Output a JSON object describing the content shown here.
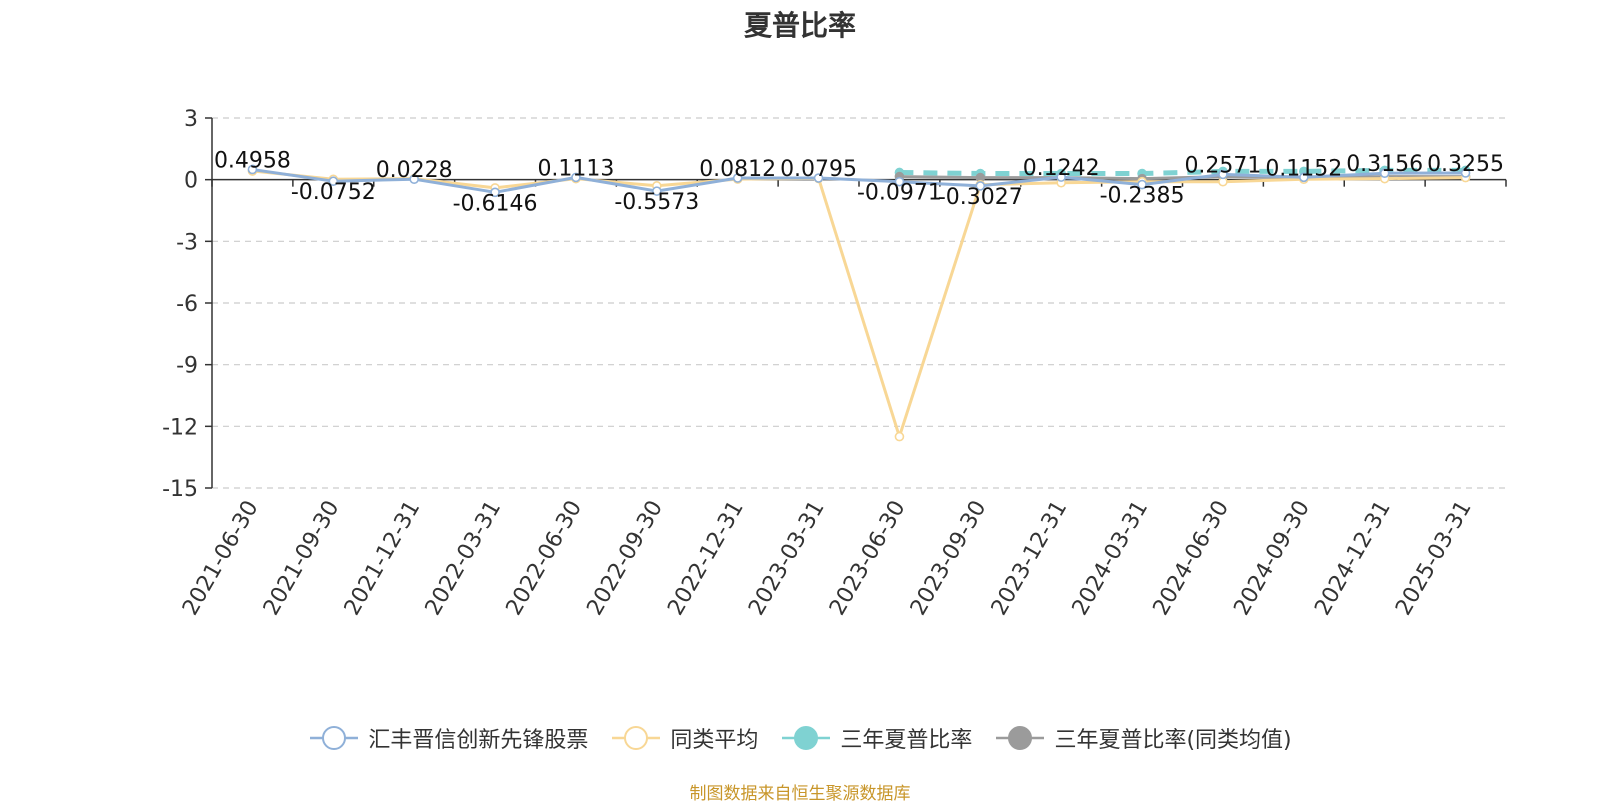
{
  "title": "夏普比率",
  "source_note": "制图数据来自恒生聚源数据库",
  "colors": {
    "fund": "#8fb0d8",
    "peer_avg": "#f8d795",
    "three_year": "#7fd2d2",
    "three_year_peer": "#9b9b9b",
    "grid": "#cccccc",
    "axis": "#333333"
  },
  "chart_data": {
    "type": "line",
    "title": "夏普比率",
    "xlabel": "",
    "ylabel": "",
    "ylim": [
      -15,
      3
    ],
    "yticks": [
      3,
      0,
      -3,
      -6,
      -9,
      -12,
      -15
    ],
    "grid": true,
    "legend_position": "bottom",
    "categories": [
      "2021-06-30",
      "2021-09-30",
      "2021-12-31",
      "2022-03-31",
      "2022-06-30",
      "2022-09-30",
      "2022-12-31",
      "2023-03-31",
      "2023-06-30",
      "2023-09-30",
      "2023-12-31",
      "2024-03-31",
      "2024-06-30",
      "2024-09-30",
      "2024-12-31",
      "2025-03-31"
    ],
    "series": [
      {
        "name": "汇丰晋信创新先锋股票",
        "key": "fund",
        "marker": "circle-hollow",
        "values": [
          0.4958,
          -0.0752,
          0.0228,
          -0.6146,
          0.1113,
          -0.5573,
          0.0812,
          0.0795,
          -0.0971,
          -0.3027,
          0.1242,
          -0.2385,
          0.2571,
          0.1152,
          0.3156,
          0.3255
        ],
        "labels": [
          "0.4958",
          "-0.0752",
          "0.0228",
          "-0.6146",
          "0.1113",
          "-0.5573",
          "0.0812",
          "0.0795",
          "-0.0971",
          "-0.3027",
          "0.1242",
          "-0.2385",
          "0.2571",
          "0.1152",
          "0.3156",
          "0.3255"
        ]
      },
      {
        "name": "同类平均",
        "key": "peer_avg",
        "marker": "circle-hollow",
        "values": [
          0.42,
          0.02,
          0.05,
          -0.4,
          0.05,
          -0.3,
          0.03,
          0.06,
          -12.5,
          -0.25,
          -0.15,
          -0.1,
          -0.1,
          0.02,
          0.05,
          0.1
        ]
      },
      {
        "name": "三年夏普比率",
        "key": "three_year",
        "marker": "circle-filled",
        "dashed": true,
        "values": [
          null,
          null,
          null,
          null,
          null,
          null,
          null,
          null,
          0.35,
          0.3,
          0.3,
          0.3,
          0.4,
          0.4,
          0.45,
          0.45
        ]
      },
      {
        "name": "三年夏普比率(同类均值)",
        "key": "three_year_peer",
        "marker": "circle-filled",
        "values": [
          null,
          null,
          null,
          null,
          null,
          null,
          null,
          null,
          0.15,
          0.1,
          0.1,
          0.05,
          0.15,
          0.1,
          0.15,
          0.15
        ]
      }
    ]
  }
}
